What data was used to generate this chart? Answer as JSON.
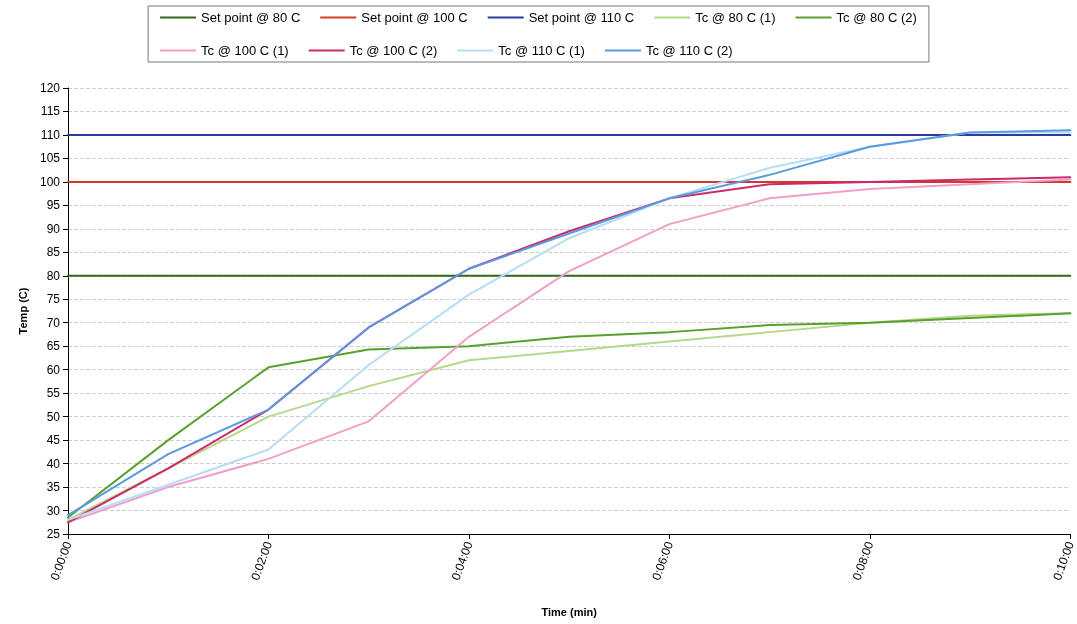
{
  "chart_data": {
    "type": "line",
    "xlabel": "Time (min)",
    "ylabel": "Temp (C)",
    "x": [
      0,
      1,
      2,
      3,
      4,
      5,
      6,
      7,
      8,
      9,
      10
    ],
    "xlim": [
      0,
      10
    ],
    "xticks": [
      {
        "value": 0,
        "label": "0:00:00"
      },
      {
        "value": 2,
        "label": "0:02:00"
      },
      {
        "value": 4,
        "label": "0:04:00"
      },
      {
        "value": 6,
        "label": "0:06:00"
      },
      {
        "value": 8,
        "label": "0:08:00"
      },
      {
        "value": 10,
        "label": "0:10:00"
      }
    ],
    "ylim": [
      25,
      120
    ],
    "yticks": [
      25,
      30,
      35,
      40,
      45,
      50,
      55,
      60,
      65,
      70,
      75,
      80,
      85,
      90,
      95,
      100,
      105,
      110,
      115,
      120
    ],
    "grid": "y",
    "legend": "top",
    "marker": "none",
    "line_style": "solid",
    "series": [
      {
        "name": "Set point @ 80 C",
        "color": "#2e6b1a",
        "values": [
          80,
          80,
          80,
          80,
          80,
          80,
          80,
          80,
          80,
          80,
          80
        ]
      },
      {
        "name": "Set point @ 100 C",
        "color": "#d23a2a",
        "values": [
          100,
          100,
          100,
          100,
          100,
          100,
          100,
          100,
          100,
          100,
          100
        ]
      },
      {
        "name": "Set point @ 110 C",
        "color": "#2c3c9c",
        "values": [
          110,
          110,
          110,
          110,
          110,
          110,
          110,
          110,
          110,
          110,
          110
        ]
      },
      {
        "name": "Tc @ 80 C (1)",
        "color": "#b5d98a",
        "values": [
          28,
          39,
          50,
          56.5,
          62,
          64,
          66,
          68,
          70,
          71.5,
          72
        ]
      },
      {
        "name": "Tc @ 80 C (2)",
        "color": "#5aa02c",
        "values": [
          28.5,
          45,
          60.5,
          64.3,
          65,
          67,
          68,
          69.5,
          70,
          71,
          72
        ]
      },
      {
        "name": "Tc @ 100 C (1)",
        "color": "#f0a0c8",
        "values": [
          27.5,
          35,
          41,
          49,
          67,
          81,
          91,
          96.5,
          98.5,
          99.5,
          100.5
        ]
      },
      {
        "name": "Tc @ 100 C (2)",
        "color": "#cc2a6a",
        "values": [
          27.5,
          39,
          51.5,
          69,
          81.5,
          89.5,
          96.5,
          99.5,
          100,
          100.5,
          101
        ]
      },
      {
        "name": "Tc @ 110 C (1)",
        "color": "#b8dcf4",
        "values": [
          28,
          35.5,
          43,
          61,
          76,
          88,
          96.5,
          103,
          107.5,
          110.5,
          110.5
        ]
      },
      {
        "name": "Tc @ 110 C (2)",
        "color": "#5a9ae0",
        "values": [
          29,
          42,
          51.5,
          69,
          81.5,
          89,
          96.5,
          101.5,
          107.5,
          110.5,
          111
        ]
      }
    ]
  }
}
